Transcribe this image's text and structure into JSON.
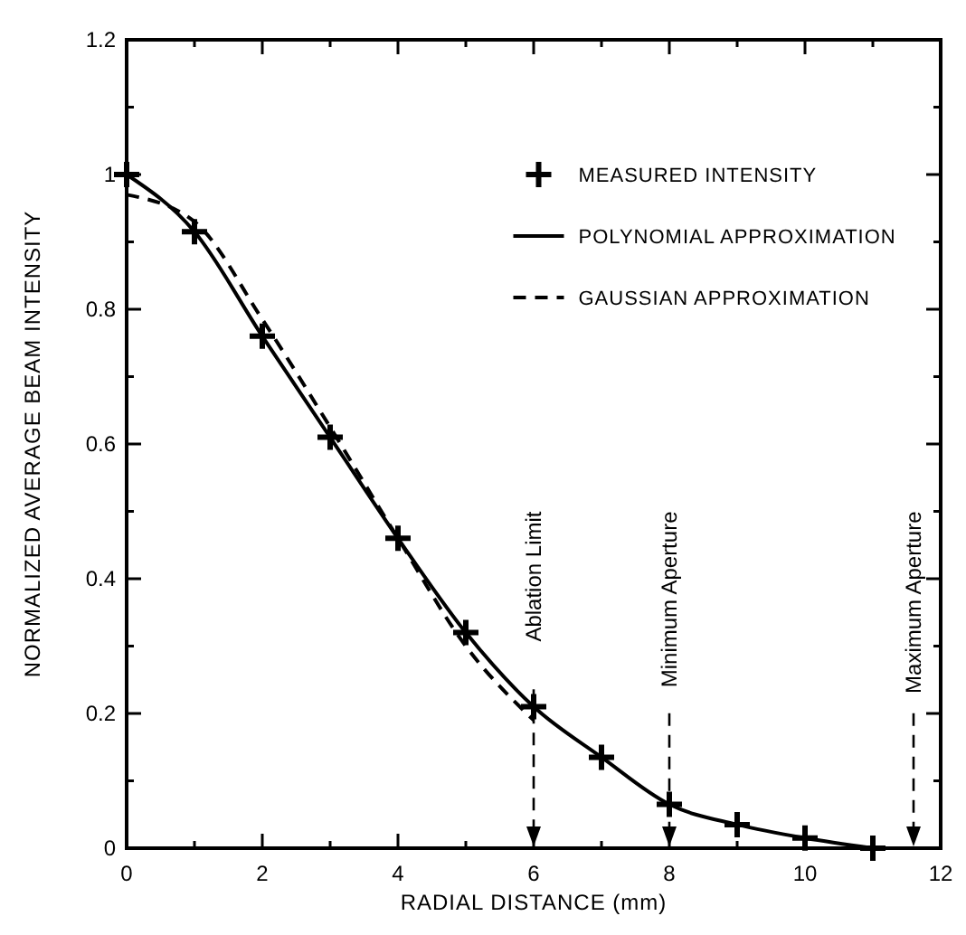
{
  "chart_data": {
    "type": "line",
    "xlabel": "RADIAL DISTANCE (mm)",
    "ylabel": "NORMALIZED AVERAGE BEAM INTENSITY",
    "xlim": [
      0,
      12
    ],
    "ylim": [
      0,
      1.2
    ],
    "xticks": [
      0,
      {
        "value": 1,
        "label": null
      },
      2,
      {
        "value": 3,
        "label": null
      },
      4,
      {
        "value": 5,
        "label": null
      },
      6,
      {
        "value": 7,
        "label": null
      },
      8,
      {
        "value": 9,
        "label": null
      },
      10,
      {
        "value": 11,
        "label": null
      },
      12
    ],
    "yticks": [
      0,
      {
        "value": 0.1,
        "label": null
      },
      0.2,
      {
        "value": 0.3,
        "label": null
      },
      0.4,
      {
        "value": 0.5,
        "label": null
      },
      0.6,
      {
        "value": 0.7,
        "label": null
      },
      0.8,
      {
        "value": 0.9,
        "label": null
      },
      1.0,
      {
        "value": 1.1,
        "label": null
      },
      1.2
    ],
    "legend": "top right",
    "series": [
      {
        "name": "MEASURED INTENSITY",
        "type": "scatter",
        "marker": "cross",
        "color": "#000000",
        "x": [
          0,
          1,
          2,
          3,
          4,
          5,
          6,
          7,
          8,
          9,
          10,
          11
        ],
        "values": [
          1.0,
          0.915,
          0.76,
          0.61,
          0.46,
          0.32,
          0.21,
          0.135,
          0.065,
          0.035,
          0.015,
          0.0
        ]
      },
      {
        "name": "POLYNOMIAL APPROXIMATION",
        "line_style": "solid",
        "color": "#000000",
        "x": [
          0,
          1,
          2,
          3,
          4,
          5,
          6,
          7,
          8,
          9,
          10,
          11
        ],
        "values": [
          1.0,
          0.915,
          0.76,
          0.61,
          0.46,
          0.32,
          0.21,
          0.135,
          0.065,
          0.035,
          0.015,
          0.0
        ]
      },
      {
        "name": "GAUSSIAN APPROXIMATION",
        "line_style": "dashed",
        "color": "#000000",
        "x": [
          0,
          1,
          2,
          3,
          4,
          5,
          6
        ],
        "values": [
          0.97,
          0.93,
          0.785,
          0.625,
          0.46,
          0.3,
          0.19
        ]
      }
    ],
    "ref_lines": [
      {
        "axis": "x",
        "value": 6,
        "label": "Ablation Limit",
        "line_style": "dashed",
        "color": "#000000"
      },
      {
        "axis": "x",
        "value": 8,
        "label": "Minimum Aperture",
        "line_style": "dashed",
        "color": "#000000"
      },
      {
        "axis": "x",
        "value": 11.6,
        "label": "Maximum Aperture",
        "line_style": "dashed",
        "color": "#000000"
      }
    ]
  }
}
